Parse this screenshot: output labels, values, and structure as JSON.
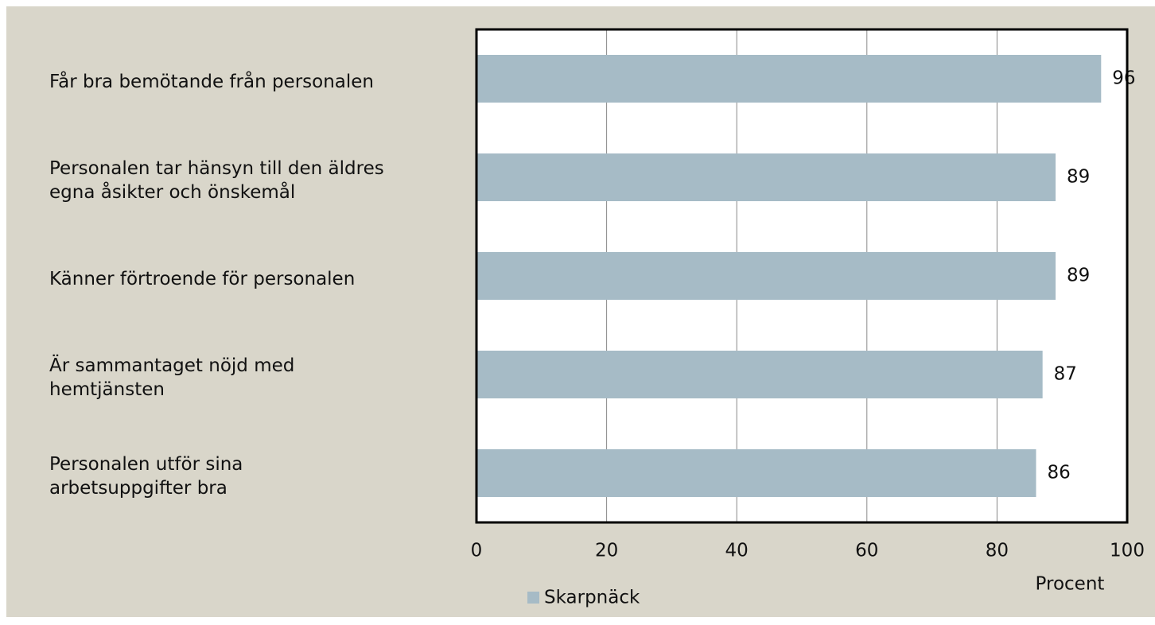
{
  "chart_data": {
    "type": "bar",
    "orientation": "horizontal",
    "categories": [
      "Får bra bemötande från personalen",
      "Personalen tar hänsyn till den äldres\negna åsikter och önskemål",
      "Känner förtroende för personalen",
      "Är sammantaget nöjd med\nhemtjänsten",
      "Personalen utför sina\narbetsuppgifter bra"
    ],
    "series": [
      {
        "name": "Skarpnäck",
        "color": "#a6bbc6",
        "values": [
          96,
          89,
          89,
          87,
          86
        ]
      }
    ],
    "xlabel": "Procent",
    "xlim": [
      0,
      100
    ],
    "xticks": [
      0,
      20,
      40,
      60,
      80,
      100
    ],
    "grid": true,
    "legend": "bottom"
  }
}
